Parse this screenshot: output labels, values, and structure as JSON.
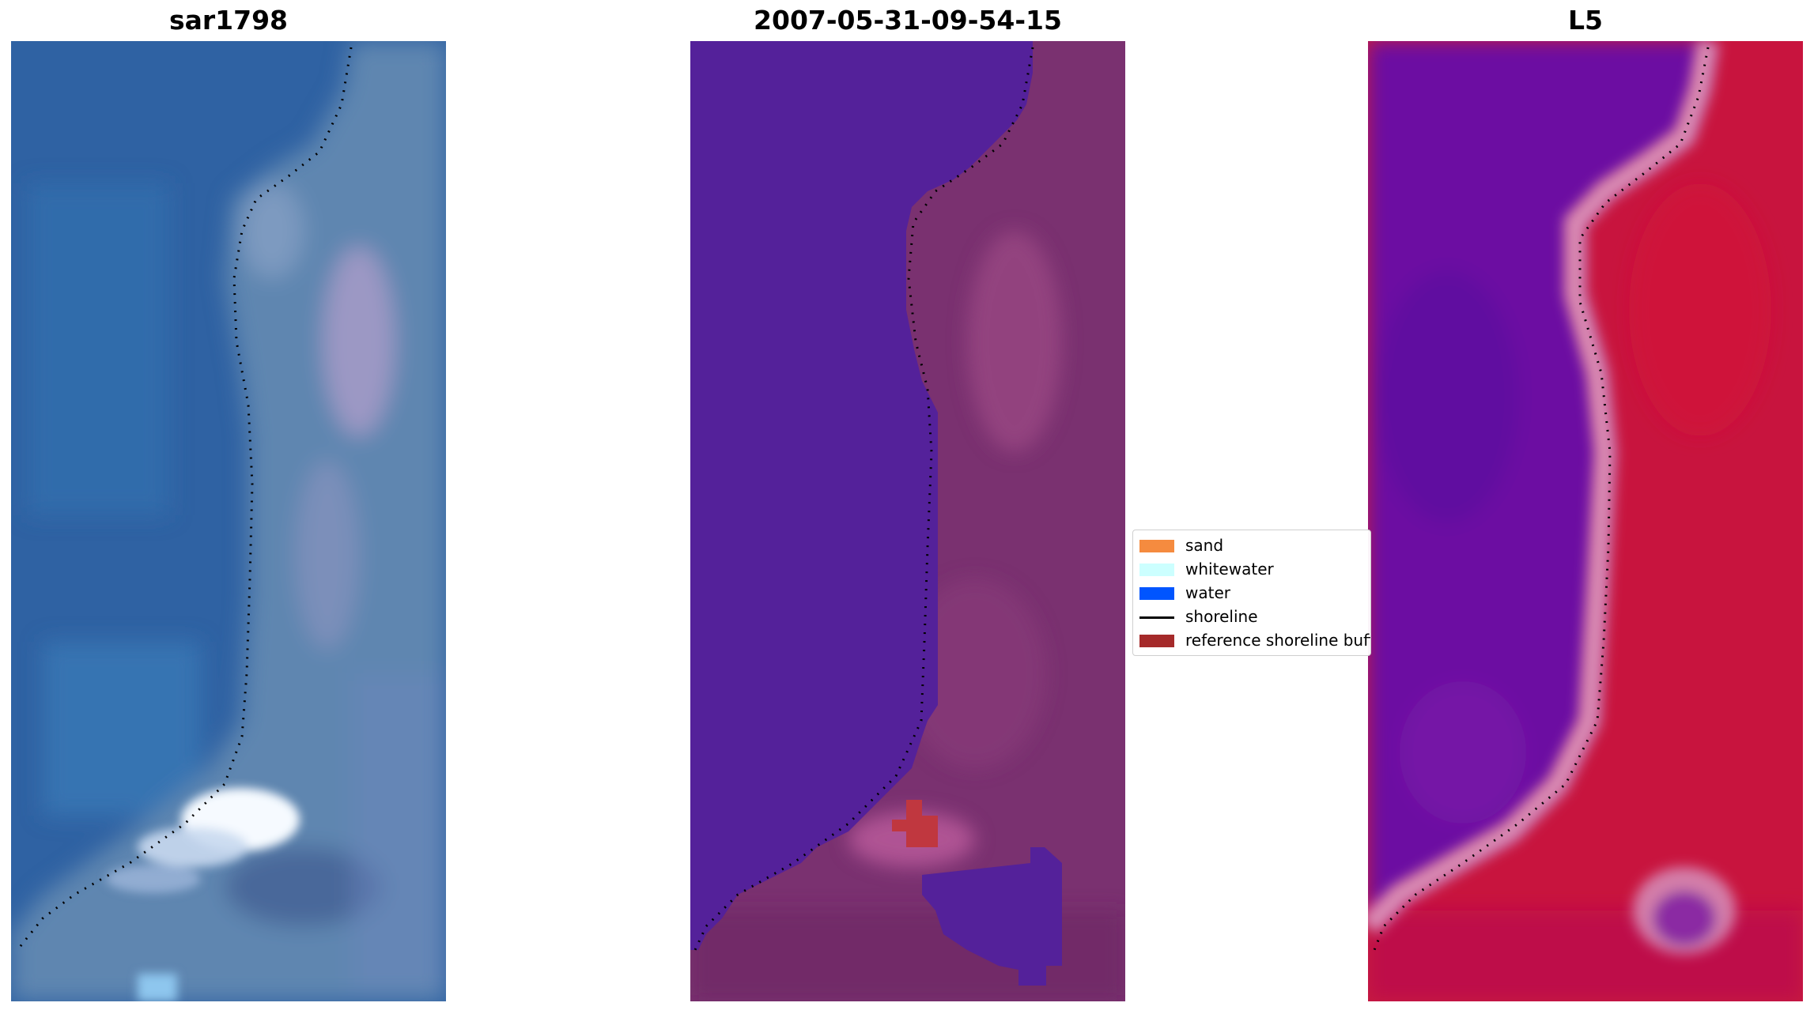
{
  "panels": [
    {
      "title": "sar1798",
      "image": "satellite-rgb-image"
    },
    {
      "title": "2007-05-31-09-54-15",
      "image": "classified-image"
    },
    {
      "title": "L5",
      "image": "water-index-image"
    }
  ],
  "legend": {
    "items": [
      {
        "label": "sand",
        "color": "#f58b3f",
        "kind": "patch"
      },
      {
        "label": "whitewater",
        "color": "#ccffff",
        "kind": "patch"
      },
      {
        "label": "water",
        "color": "#0055ff",
        "kind": "patch"
      },
      {
        "label": "shoreline",
        "color": "#000000",
        "kind": "line"
      },
      {
        "label": "reference shoreline buffer",
        "color": "#a52a2a",
        "kind": "patch"
      }
    ]
  },
  "colors": {
    "panel1_water": "#2f62a3",
    "panel1_land": "#5f86b0",
    "panel1_surf": "#f4f8ff",
    "panel2_water": "#54219a",
    "panel2_land": "#7a3170",
    "panel2_buffer": "#c0373f",
    "panel3_water": "#6c0fa2",
    "panel3_land": "#c8143e",
    "panel3_edge": "#d98ab3"
  }
}
